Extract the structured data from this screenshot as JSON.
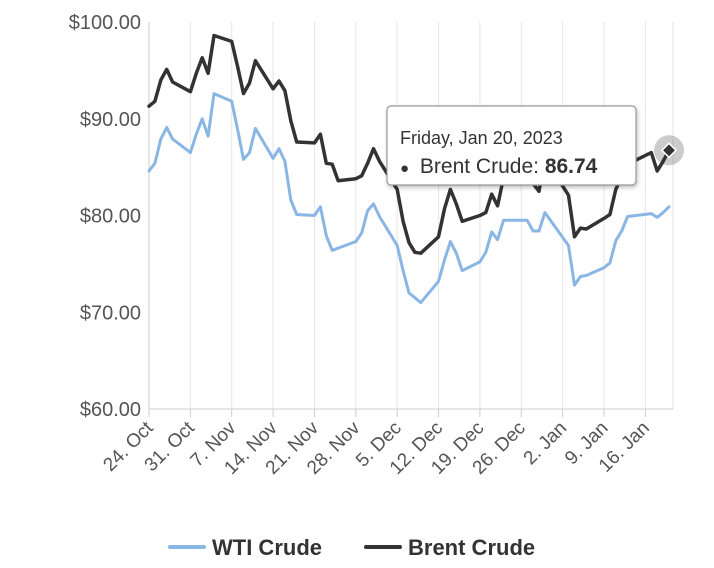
{
  "chart_data": {
    "type": "line",
    "title": "",
    "xlabel": "",
    "ylabel": "",
    "ylim": [
      60,
      100
    ],
    "y_ticks": [
      "$60.00",
      "$70.00",
      "$80.00",
      "$90.00",
      "$100.00"
    ],
    "y_tick_values": [
      60,
      70,
      80,
      90,
      100
    ],
    "x_tick_labels": [
      "24. Oct",
      "31. Oct",
      "7. Nov",
      "14. Nov",
      "21. Nov",
      "28. Nov",
      "5. Dec",
      "12. Dec",
      "19. Dec",
      "26. Dec",
      "2. Jan",
      "9. Jan",
      "16. Jan"
    ],
    "x_tick_dates": [
      "2022-10-24",
      "2022-10-31",
      "2022-11-07",
      "2022-11-14",
      "2022-11-21",
      "2022-11-28",
      "2022-12-05",
      "2022-12-12",
      "2022-12-19",
      "2022-12-26",
      "2023-01-02",
      "2023-01-09",
      "2023-01-16"
    ],
    "x_range": [
      "2022-10-24",
      "2023-01-20"
    ],
    "grid": "vertical",
    "legend_position": "bottom-center",
    "series": [
      {
        "name": "WTI Crude",
        "color": "#8ab6e6",
        "points": [
          [
            "2022-10-24",
            84.6
          ],
          [
            "2022-10-25",
            85.4
          ],
          [
            "2022-10-26",
            87.9
          ],
          [
            "2022-10-27",
            89.1
          ],
          [
            "2022-10-28",
            87.9
          ],
          [
            "2022-10-31",
            86.5
          ],
          [
            "2022-11-01",
            88.4
          ],
          [
            "2022-11-02",
            90.0
          ],
          [
            "2022-11-03",
            88.2
          ],
          [
            "2022-11-04",
            92.6
          ],
          [
            "2022-11-07",
            91.8
          ],
          [
            "2022-11-08",
            88.9
          ],
          [
            "2022-11-09",
            85.8
          ],
          [
            "2022-11-10",
            86.5
          ],
          [
            "2022-11-11",
            89.0
          ],
          [
            "2022-11-14",
            85.9
          ],
          [
            "2022-11-15",
            86.9
          ],
          [
            "2022-11-16",
            85.6
          ],
          [
            "2022-11-17",
            81.6
          ],
          [
            "2022-11-18",
            80.1
          ],
          [
            "2022-11-21",
            80.0
          ],
          [
            "2022-11-22",
            80.9
          ],
          [
            "2022-11-23",
            77.9
          ],
          [
            "2022-11-24",
            76.4
          ],
          [
            "2022-11-28",
            77.3
          ],
          [
            "2022-11-29",
            78.2
          ],
          [
            "2022-11-30",
            80.5
          ],
          [
            "2022-12-01",
            81.2
          ],
          [
            "2022-12-02",
            79.9
          ],
          [
            "2022-12-05",
            76.9
          ],
          [
            "2022-12-06",
            74.3
          ],
          [
            "2022-12-07",
            72.0
          ],
          [
            "2022-12-08",
            71.5
          ],
          [
            "2022-12-09",
            71.0
          ],
          [
            "2022-12-12",
            73.2
          ],
          [
            "2022-12-13",
            75.4
          ],
          [
            "2022-12-14",
            77.3
          ],
          [
            "2022-12-15",
            76.1
          ],
          [
            "2022-12-16",
            74.3
          ],
          [
            "2022-12-19",
            75.2
          ],
          [
            "2022-12-20",
            76.2
          ],
          [
            "2022-12-21",
            78.3
          ],
          [
            "2022-12-22",
            77.5
          ],
          [
            "2022-12-23",
            79.5
          ],
          [
            "2022-12-27",
            79.5
          ],
          [
            "2022-12-28",
            78.4
          ],
          [
            "2022-12-29",
            78.4
          ],
          [
            "2022-12-30",
            80.3
          ],
          [
            "2023-01-03",
            76.9
          ],
          [
            "2023-01-04",
            72.8
          ],
          [
            "2023-01-05",
            73.7
          ],
          [
            "2023-01-06",
            73.8
          ],
          [
            "2023-01-09",
            74.6
          ],
          [
            "2023-01-10",
            75.1
          ],
          [
            "2023-01-11",
            77.4
          ],
          [
            "2023-01-12",
            78.4
          ],
          [
            "2023-01-13",
            79.9
          ],
          [
            "2023-01-17",
            80.2
          ],
          [
            "2023-01-18",
            79.8
          ],
          [
            "2023-01-19",
            80.3
          ],
          [
            "2023-01-20",
            80.9
          ]
        ]
      },
      {
        "name": "Brent Crude",
        "color": "#333333",
        "points": [
          [
            "2022-10-24",
            91.3
          ],
          [
            "2022-10-25",
            91.8
          ],
          [
            "2022-10-26",
            94.0
          ],
          [
            "2022-10-27",
            95.1
          ],
          [
            "2022-10-28",
            93.8
          ],
          [
            "2022-10-31",
            92.8
          ],
          [
            "2022-11-01",
            94.7
          ],
          [
            "2022-11-02",
            96.3
          ],
          [
            "2022-11-03",
            94.7
          ],
          [
            "2022-11-04",
            98.6
          ],
          [
            "2022-11-07",
            98.0
          ],
          [
            "2022-11-08",
            95.4
          ],
          [
            "2022-11-09",
            92.6
          ],
          [
            "2022-11-10",
            93.7
          ],
          [
            "2022-11-11",
            96.0
          ],
          [
            "2022-11-14",
            93.1
          ],
          [
            "2022-11-15",
            93.9
          ],
          [
            "2022-11-16",
            92.9
          ],
          [
            "2022-11-17",
            89.8
          ],
          [
            "2022-11-18",
            87.6
          ],
          [
            "2022-11-21",
            87.5
          ],
          [
            "2022-11-22",
            88.4
          ],
          [
            "2022-11-23",
            85.4
          ],
          [
            "2022-11-24",
            85.3
          ],
          [
            "2022-11-25",
            83.6
          ],
          [
            "2022-11-28",
            83.8
          ],
          [
            "2022-11-29",
            84.1
          ],
          [
            "2022-11-30",
            85.4
          ],
          [
            "2022-12-01",
            86.9
          ],
          [
            "2022-12-02",
            85.6
          ],
          [
            "2022-12-05",
            82.7
          ],
          [
            "2022-12-06",
            79.4
          ],
          [
            "2022-12-07",
            77.2
          ],
          [
            "2022-12-08",
            76.2
          ],
          [
            "2022-12-09",
            76.1
          ],
          [
            "2022-12-12",
            77.8
          ],
          [
            "2022-12-13",
            80.7
          ],
          [
            "2022-12-14",
            82.7
          ],
          [
            "2022-12-15",
            81.2
          ],
          [
            "2022-12-16",
            79.4
          ],
          [
            "2022-12-19",
            80.0
          ],
          [
            "2022-12-20",
            80.3
          ],
          [
            "2022-12-21",
            82.2
          ],
          [
            "2022-12-22",
            81.0
          ],
          [
            "2022-12-23",
            83.9
          ],
          [
            "2022-12-27",
            83.6
          ],
          [
            "2022-12-28",
            83.3
          ],
          [
            "2022-12-29",
            82.5
          ],
          [
            "2022-12-30",
            85.9
          ],
          [
            "2023-01-03",
            82.1
          ],
          [
            "2023-01-04",
            77.8
          ],
          [
            "2023-01-05",
            78.7
          ],
          [
            "2023-01-06",
            78.6
          ],
          [
            "2023-01-09",
            79.7
          ],
          [
            "2023-01-10",
            80.1
          ],
          [
            "2023-01-11",
            82.7
          ],
          [
            "2023-01-12",
            84.0
          ],
          [
            "2023-01-13",
            85.3
          ],
          [
            "2023-01-17",
            86.5
          ],
          [
            "2023-01-18",
            84.6
          ],
          [
            "2023-01-19",
            85.6
          ],
          [
            "2023-01-20",
            86.74
          ]
        ]
      }
    ],
    "tooltip": {
      "date_text": "Friday, Jan 20, 2023",
      "bullet": "●",
      "series_label": "Brent Crude: ",
      "value_text": "86.74",
      "series_index": 1,
      "point_index": 61
    }
  }
}
